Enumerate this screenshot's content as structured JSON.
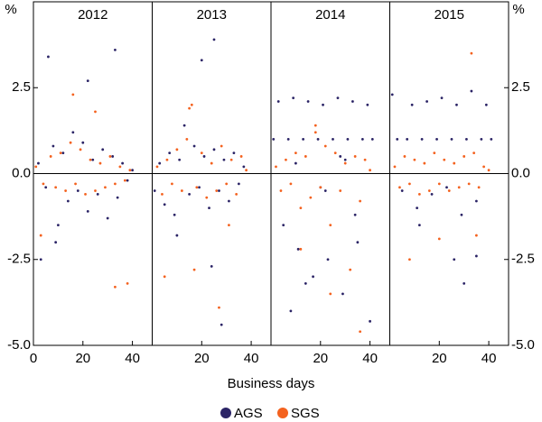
{
  "chart_data": [
    {
      "type": "scatter",
      "title": "2012",
      "ylabel": "%",
      "xlabel": "Business days",
      "xlim": [
        0,
        48
      ],
      "xticks": [
        0,
        20,
        40
      ],
      "ylim": [
        -5,
        5
      ],
      "yticks": [
        {
          "value": -5,
          "label": "-5.0"
        },
        {
          "value": -2.5,
          "label": "-2.5"
        },
        {
          "value": 0,
          "label": "0.0"
        },
        {
          "value": 2.5,
          "label": "2.5"
        }
      ],
      "series": [
        {
          "name": "AGS",
          "color": "#2b2466",
          "x": [
            2,
            5,
            8,
            10,
            12,
            14,
            16,
            18,
            20,
            22,
            24,
            26,
            28,
            30,
            32,
            34,
            36,
            38,
            40,
            6,
            9,
            33,
            3,
            22
          ],
          "values": [
            0.3,
            -0.4,
            0.8,
            -1.5,
            0.6,
            -0.8,
            1.2,
            -0.5,
            0.9,
            -1.1,
            0.4,
            -0.6,
            0.7,
            -1.3,
            0.5,
            -0.7,
            0.3,
            -0.2,
            0.1,
            3.4,
            -2.0,
            3.6,
            -2.5,
            2.7
          ]
        },
        {
          "name": "SGS",
          "color": "#f4621f",
          "x": [
            1,
            4,
            7,
            9,
            11,
            13,
            15,
            17,
            19,
            21,
            23,
            25,
            27,
            29,
            31,
            33,
            35,
            37,
            39,
            3,
            16,
            25,
            33,
            38
          ],
          "values": [
            0.2,
            -0.3,
            0.5,
            -0.4,
            0.6,
            -0.5,
            0.9,
            -0.3,
            0.7,
            -0.6,
            0.4,
            -0.5,
            0.3,
            -0.4,
            0.5,
            -0.3,
            0.2,
            -0.2,
            0.1,
            -1.8,
            2.3,
            1.8,
            -3.3,
            -3.2
          ]
        }
      ]
    },
    {
      "type": "scatter",
      "title": "2013",
      "xlim": [
        0,
        48
      ],
      "xticks": [
        20,
        40
      ],
      "ylim": [
        -5,
        5
      ],
      "series": [
        {
          "name": "AGS",
          "color": "#2b2466",
          "x": [
            1,
            3,
            5,
            7,
            9,
            11,
            13,
            15,
            17,
            19,
            21,
            23,
            25,
            27,
            29,
            31,
            33,
            35,
            37,
            20,
            25,
            28,
            10,
            24
          ],
          "values": [
            -0.5,
            0.3,
            -0.9,
            0.6,
            -1.2,
            0.4,
            1.4,
            -0.6,
            0.8,
            -0.4,
            0.5,
            -1.0,
            0.7,
            -0.5,
            0.4,
            -0.8,
            0.6,
            -0.3,
            0.2,
            3.3,
            3.9,
            -4.4,
            -1.8,
            -2.7
          ]
        },
        {
          "name": "SGS",
          "color": "#f4621f",
          "x": [
            2,
            4,
            6,
            8,
            10,
            12,
            14,
            16,
            18,
            20,
            22,
            24,
            26,
            28,
            30,
            32,
            34,
            36,
            38,
            15,
            17,
            5,
            31,
            27
          ],
          "values": [
            0.2,
            -0.6,
            0.4,
            -0.3,
            0.7,
            -0.5,
            1.0,
            2.0,
            -0.4,
            0.6,
            -0.7,
            0.3,
            -0.5,
            0.8,
            -0.3,
            0.4,
            -0.6,
            0.5,
            0.1,
            1.9,
            -2.8,
            -3.0,
            -1.5,
            -3.9
          ]
        }
      ]
    },
    {
      "type": "scatter",
      "title": "2014",
      "xlim": [
        0,
        48
      ],
      "xticks": [
        20,
        40
      ],
      "ylim": [
        -5,
        5
      ],
      "series": [
        {
          "name": "AGS",
          "color": "#2b2466",
          "x": [
            1,
            3,
            5,
            7,
            9,
            11,
            13,
            15,
            17,
            19,
            21,
            23,
            25,
            27,
            29,
            31,
            33,
            35,
            37,
            39,
            41,
            8,
            14,
            22,
            28,
            34,
            40,
            10,
            20,
            30
          ],
          "values": [
            1.0,
            2.1,
            -1.5,
            1.0,
            2.2,
            -2.2,
            1.0,
            2.1,
            -3.0,
            1.0,
            2.0,
            -2.5,
            1.0,
            2.2,
            -3.5,
            1.0,
            2.1,
            -2.0,
            1.0,
            2.0,
            1.0,
            -4.0,
            -3.2,
            -0.5,
            0.5,
            -1.2,
            -4.3,
            0.3,
            -0.4,
            0.4
          ]
        },
        {
          "name": "SGS",
          "color": "#f4621f",
          "x": [
            2,
            4,
            6,
            8,
            10,
            12,
            14,
            16,
            18,
            20,
            22,
            24,
            26,
            28,
            30,
            32,
            34,
            36,
            38,
            40,
            12,
            24,
            36,
            18
          ],
          "values": [
            0.2,
            -0.5,
            0.4,
            -0.3,
            0.6,
            -1.0,
            0.5,
            -0.7,
            1.4,
            -0.4,
            0.8,
            -1.5,
            0.6,
            -0.5,
            0.3,
            -2.8,
            0.5,
            -0.8,
            0.4,
            0.1,
            -2.2,
            -3.5,
            -4.6,
            1.2
          ]
        }
      ]
    },
    {
      "type": "scatter",
      "title": "2015",
      "ylabel": "%",
      "xlim": [
        0,
        48
      ],
      "xticks": [
        20,
        40
      ],
      "ylim": [
        -5,
        5
      ],
      "yticks": [
        {
          "value": -5,
          "label": "-5.0"
        },
        {
          "value": -2.5,
          "label": "-2.5"
        },
        {
          "value": 0,
          "label": "0.0"
        },
        {
          "value": 2.5,
          "label": "2.5"
        }
      ],
      "series": [
        {
          "name": "AGS",
          "color": "#2b2466",
          "x": [
            1,
            3,
            5,
            7,
            9,
            11,
            13,
            15,
            17,
            19,
            21,
            23,
            25,
            27,
            29,
            31,
            33,
            35,
            37,
            39,
            41,
            26,
            30,
            12,
            35
          ],
          "values": [
            2.3,
            1.0,
            -0.5,
            1.0,
            2.0,
            -1.0,
            1.0,
            2.1,
            -0.6,
            1.0,
            2.2,
            -0.4,
            1.0,
            2.0,
            -1.2,
            1.0,
            2.4,
            -0.8,
            1.0,
            2.0,
            1.0,
            -2.5,
            -3.2,
            -1.5,
            -2.4
          ]
        },
        {
          "name": "SGS",
          "color": "#f4621f",
          "x": [
            2,
            4,
            6,
            8,
            10,
            12,
            14,
            16,
            18,
            20,
            22,
            24,
            26,
            28,
            30,
            32,
            34,
            36,
            38,
            40,
            8,
            20,
            35,
            33
          ],
          "values": [
            0.2,
            -0.4,
            0.5,
            -0.3,
            0.4,
            -0.6,
            0.3,
            -0.5,
            0.6,
            -0.3,
            0.4,
            -0.5,
            0.3,
            -0.4,
            0.5,
            -0.3,
            0.6,
            -0.4,
            0.2,
            0.1,
            -2.5,
            -1.9,
            -1.8,
            3.5
          ]
        }
      ]
    }
  ]
}
